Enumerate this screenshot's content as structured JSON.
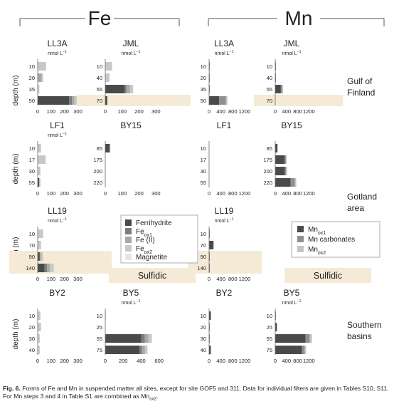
{
  "sections": {
    "fe": "Fe",
    "mn": "Mn"
  },
  "regions": {
    "gulf": "Gulf of Finland",
    "gotland": "Gotland area",
    "southern": "Southern basins"
  },
  "axis": {
    "depth_label": "depth (m)",
    "unit_prefix": "nmol L",
    "unit_exp": "−1"
  },
  "sulfidic_label": "Sulfidic",
  "legends": {
    "fe": [
      {
        "label": "Ferrihydrite",
        "sub": ""
      },
      {
        "label": "Fe",
        "sub": "ox1"
      },
      {
        "label": "Fe (II)",
        "sub": ""
      },
      {
        "label": "Fe",
        "sub": "ox2"
      },
      {
        "label": "Magnetite",
        "sub": ""
      }
    ],
    "mn": [
      {
        "label": "Mn",
        "sub": "ox1"
      },
      {
        "label": "Mn carbonates",
        "sub": ""
      },
      {
        "label": "Mn",
        "sub": "ox2"
      }
    ]
  },
  "colors": {
    "fe": [
      "#4a4a4a",
      "#7c7c7c",
      "#a8a8a8",
      "#c8c8c8",
      "#e6e6e6"
    ],
    "mn": [
      "#4a4a4a",
      "#8f8f8f",
      "#c4c4c4"
    ],
    "sulfidic": "#f5ead6",
    "axis": "#666666",
    "text": "#222222"
  },
  "caption": {
    "fig_label": "Fig. 6.",
    "text": "Forms of Fe and Mn in suspended matter all sites, except for site GOF5 and 311. Data for individual filters are given in Tables S10, S11. For Mn steps 3 and 4 in Table S1 are combined as Mn",
    "sub": "ox2",
    "end": "."
  },
  "chart_data": [
    {
      "type": "bar",
      "panel": "Fe LL3A",
      "title": "LL3A",
      "unit": true,
      "depths": [
        "10",
        "20",
        "35",
        "50"
      ],
      "xticks": [
        0,
        100,
        200,
        300
      ],
      "xlim": [
        0,
        345
      ],
      "sulfidic": [],
      "stacks": [
        [
          0,
          0,
          0,
          62,
          0
        ],
        [
          0,
          0,
          30,
          10,
          0
        ],
        [
          0,
          0,
          0,
          12,
          0
        ],
        [
          235,
          20,
          20,
          40,
          0
        ]
      ]
    },
    {
      "type": "bar",
      "panel": "Fe JML",
      "title": "JML",
      "unit": true,
      "depths": [
        "10",
        "40",
        "55",
        "70"
      ],
      "xticks": [
        0,
        100,
        200,
        300
      ],
      "xlim": [
        0,
        345
      ],
      "sulfidic": [
        3
      ],
      "stacks": [
        [
          0,
          0,
          0,
          40,
          0
        ],
        [
          0,
          0,
          0,
          25,
          0
        ],
        [
          115,
          10,
          20,
          20,
          0
        ],
        [
          12,
          0,
          0,
          0,
          0
        ]
      ]
    },
    {
      "type": "bar",
      "panel": "Fe LF1",
      "title": "LF1",
      "unit": true,
      "depths": [
        "10",
        "17",
        "30",
        "55"
      ],
      "xticks": [
        0,
        100,
        200,
        300
      ],
      "xlim": [
        0,
        345
      ],
      "sulfidic": [],
      "stacks": [
        [
          0,
          0,
          0,
          25,
          0
        ],
        [
          0,
          0,
          0,
          60,
          0
        ],
        [
          0,
          0,
          0,
          20,
          0
        ],
        [
          12,
          0,
          0,
          8,
          0
        ]
      ]
    },
    {
      "type": "bar",
      "panel": "Fe BY15",
      "title": "BY15",
      "unit": false,
      "depths": [
        "85",
        "175",
        "200",
        "220"
      ],
      "xticks": [
        0,
        100,
        200,
        300
      ],
      "xlim": [
        0,
        345
      ],
      "sulfidic": [],
      "stacks": [
        [
          25,
          0,
          5,
          0,
          0
        ],
        [
          0,
          0,
          0,
          0,
          0
        ],
        [
          0,
          0,
          0,
          0,
          0
        ],
        [
          0,
          0,
          0,
          0,
          0
        ]
      ]
    },
    {
      "type": "bar",
      "panel": "Fe LL19",
      "title": "LL19",
      "unit": true,
      "depths": [
        "10",
        "70",
        "90",
        "140"
      ],
      "xticks": [
        0,
        100,
        200,
        300
      ],
      "xlim": [
        0,
        345
      ],
      "sulfidic": [
        2,
        3
      ],
      "stacks": [
        [
          0,
          0,
          0,
          40,
          0
        ],
        [
          0,
          0,
          0,
          25,
          0
        ],
        [
          15,
          5,
          0,
          20,
          0
        ],
        [
          50,
          20,
          20,
          30,
          0
        ]
      ]
    },
    {
      "type": "bar",
      "panel": "Fe BY2",
      "title": "BY2",
      "unit": false,
      "depths": [
        "10",
        "20",
        "30",
        "40"
      ],
      "xticks": [
        0,
        100,
        200,
        300
      ],
      "xlim": [
        0,
        345
      ],
      "sulfidic": [],
      "stacks": [
        [
          0,
          0,
          0,
          20,
          0
        ],
        [
          0,
          0,
          0,
          25,
          0
        ],
        [
          0,
          0,
          0,
          15,
          0
        ],
        [
          0,
          0,
          0,
          15,
          0
        ]
      ]
    },
    {
      "type": "bar",
      "panel": "Fe BY5",
      "title": "BY5",
      "unit": true,
      "depths": [
        "10",
        "25",
        "55",
        "75"
      ],
      "xticks": [
        0,
        200,
        400,
        600
      ],
      "xlim": [
        0,
        650
      ],
      "sulfidic": [],
      "stacks": [
        [
          0,
          0,
          0,
          5,
          0
        ],
        [
          0,
          0,
          0,
          0,
          0
        ],
        [
          400,
          40,
          40,
          40,
          0
        ],
        [
          380,
          30,
          30,
          30,
          0
        ]
      ]
    },
    {
      "type": "bar",
      "panel": "Mn LL3A",
      "title": "LL3A",
      "unit": true,
      "depths": [
        "10",
        "20",
        "35",
        "50"
      ],
      "xticks": [
        0,
        400,
        800,
        1200
      ],
      "xlim": [
        0,
        1250
      ],
      "sulfidic": [],
      "stacks": [
        [
          10,
          0,
          0
        ],
        [
          15,
          0,
          0
        ],
        [
          5,
          0,
          0
        ],
        [
          340,
          230,
          50
        ]
      ]
    },
    {
      "type": "bar",
      "panel": "Mn JML",
      "title": "JML",
      "unit": true,
      "depths": [
        "10",
        "40",
        "55",
        "70"
      ],
      "xticks": [
        0,
        400,
        800,
        1200
      ],
      "xlim": [
        0,
        1420
      ],
      "sulfidic": [
        3
      ],
      "stacks": [
        [
          5,
          0,
          0
        ],
        [
          5,
          0,
          0
        ],
        [
          200,
          50,
          30
        ],
        [
          0,
          0,
          0
        ]
      ]
    },
    {
      "type": "bar",
      "panel": "Mn LF1",
      "title": "LF1",
      "unit": false,
      "depths": [
        "10",
        "17",
        "30",
        "55"
      ],
      "xticks": [
        0,
        400,
        800,
        1200
      ],
      "xlim": [
        0,
        1250
      ],
      "sulfidic": [],
      "stacks": [
        [
          0,
          0,
          0
        ],
        [
          0,
          0,
          0
        ],
        [
          0,
          0,
          0
        ],
        [
          0,
          0,
          0
        ]
      ]
    },
    {
      "type": "bar",
      "panel": "Mn BY15",
      "title": "BY15",
      "unit": false,
      "depths": [
        "85",
        "175",
        "200",
        "220"
      ],
      "xticks": [
        0,
        400,
        800,
        1200
      ],
      "xlim": [
        0,
        1420
      ],
      "sulfidic": [],
      "stacks": [
        [
          80,
          0,
          0
        ],
        [
          330,
          50,
          30
        ],
        [
          340,
          50,
          30
        ],
        [
          550,
          150,
          50
        ]
      ]
    },
    {
      "type": "bar",
      "panel": "Mn LL19",
      "title": "LL19",
      "unit": true,
      "depths": [
        "10",
        "70",
        "90",
        "140"
      ],
      "xticks": [
        0,
        400,
        800,
        1200
      ],
      "xlim": [
        0,
        1250
      ],
      "sulfidic": [
        2,
        3
      ],
      "stacks": [
        [
          10,
          0,
          0
        ],
        [
          150,
          0,
          0
        ],
        [
          5,
          0,
          0
        ],
        [
          5,
          0,
          0
        ]
      ]
    },
    {
      "type": "bar",
      "panel": "Mn BY2",
      "title": "BY2",
      "unit": false,
      "depths": [
        "10",
        "20",
        "30",
        "40"
      ],
      "xticks": [
        0,
        400,
        800,
        1200
      ],
      "xlim": [
        0,
        1250
      ],
      "sulfidic": [],
      "stacks": [
        [
          60,
          0,
          0
        ],
        [
          10,
          0,
          0
        ],
        [
          10,
          0,
          0
        ],
        [
          60,
          0,
          0
        ]
      ]
    },
    {
      "type": "bar",
      "panel": "Mn BY5",
      "title": "BY5",
      "unit": true,
      "depths": [
        "10",
        "25",
        "55",
        "75"
      ],
      "xticks": [
        0,
        400,
        800,
        1200
      ],
      "xlim": [
        0,
        1420
      ],
      "sulfidic": [],
      "stacks": [
        [
          10,
          0,
          0
        ],
        [
          60,
          0,
          0
        ],
        [
          1080,
          150,
          80
        ],
        [
          950,
          100,
          50
        ]
      ]
    }
  ]
}
